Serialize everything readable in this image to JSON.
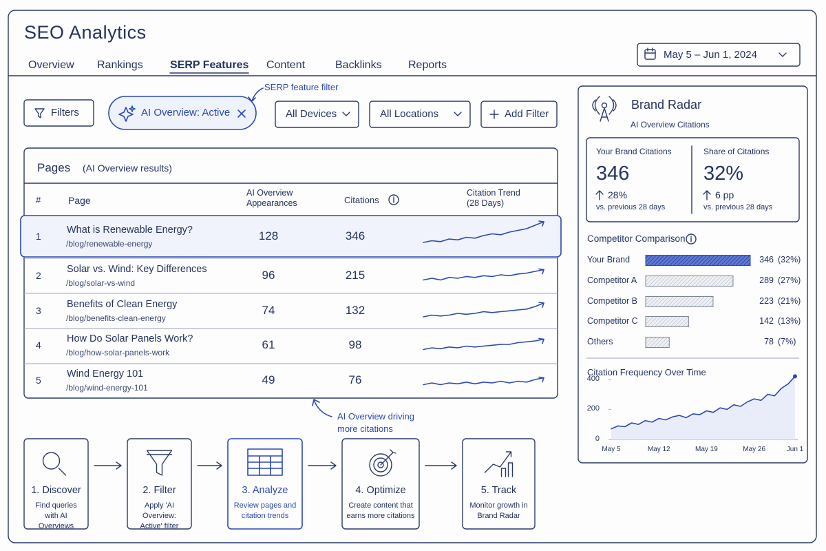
{
  "header": {
    "title": "SEO Analytics",
    "tabs": [
      "Overview",
      "Rankings",
      "SERP Features",
      "Content",
      "Backlinks",
      "Reports"
    ],
    "active_tab": 2,
    "date_range": "May 5 – Jun 1, 2024"
  },
  "filters": {
    "filters_button": "Filters",
    "active_filter": "AI Overview: Active",
    "annotation": "SERP feature filter",
    "dropdowns": [
      "All Devices",
      "All Locations"
    ],
    "add_filter": "Add Filter"
  },
  "pages_table": {
    "title": "Pages",
    "subtitle": "(AI Overview results)",
    "columns": [
      "#",
      "Page",
      "AI Overview Appearances",
      "Citations",
      "Citation Trend (28 Days)"
    ],
    "highlighted_row": 0,
    "rows": [
      {
        "rank": "1",
        "title": "What is Renewable Energy?",
        "url": "/blog/renewable-energy",
        "appearances": "128",
        "citations": "346",
        "trend": [
          2,
          3,
          2.5,
          4,
          3.5,
          5,
          4.5,
          6,
          7,
          6.5,
          8,
          9,
          10,
          12,
          14
        ]
      },
      {
        "rank": "2",
        "title": "Solar vs. Wind: Key Differences",
        "url": "/blog/solar-vs-wind",
        "appearances": "96",
        "citations": "215",
        "trend": [
          3,
          4,
          3,
          4.5,
          4,
          5,
          4.5,
          5.5,
          5,
          6,
          5.5,
          6.5,
          7,
          8,
          9
        ]
      },
      {
        "rank": "3",
        "title": "Benefits of Clean Energy",
        "url": "/blog/benefits-clean-energy",
        "appearances": "74",
        "citations": "132",
        "trend": [
          2,
          3,
          2.5,
          3,
          4,
          3.5,
          4,
          5,
          4.5,
          5,
          5.5,
          6,
          6.5,
          8,
          10
        ]
      },
      {
        "rank": "4",
        "title": "How Do Solar Panels Work?",
        "url": "/blog/how-solar-panels-work",
        "appearances": "61",
        "citations": "98",
        "trend": [
          3,
          4,
          3.5,
          4.5,
          4,
          5,
          4.5,
          5,
          5.5,
          6,
          6,
          7,
          7.5,
          8,
          9
        ]
      },
      {
        "rank": "5",
        "title": "Wind Energy 101",
        "url": "/blog/wind-energy-101",
        "appearances": "49",
        "citations": "76",
        "trend": [
          3,
          4,
          3,
          4,
          3.5,
          4.5,
          3.5,
          4.5,
          4,
          5,
          4,
          5,
          4.5,
          6,
          7
        ]
      }
    ],
    "annotation": "AI Overview driving more citations"
  },
  "brand_radar": {
    "title": "Brand Radar",
    "subtitle": "AI Overview Citations",
    "kpis": [
      {
        "label": "Your Brand Citations",
        "value": "346",
        "change": "28%",
        "note": "vs. previous 28 days"
      },
      {
        "label": "Share of Citations",
        "value": "32%",
        "change": "6 pp",
        "note": "vs. previous 28 days"
      }
    ],
    "competitor_chart": {
      "type": "bar",
      "title": "Competitor Comparison",
      "categories": [
        "Your Brand",
        "Competitor A",
        "Competitor B",
        "Competitor C",
        "Others"
      ],
      "values": [
        346,
        289,
        223,
        142,
        78
      ],
      "shares": [
        32,
        27,
        21,
        13,
        7
      ],
      "share_labels": [
        "(32%)",
        "(27%)",
        "(21%)",
        "(13%)",
        "(7%)"
      ]
    },
    "frequency_chart": {
      "type": "line",
      "title": "Citation Frequency Over Time",
      "categories": [
        "May 5",
        null,
        null,
        null,
        null,
        null,
        null,
        "May 12",
        null,
        null,
        null,
        null,
        null,
        null,
        "May 19",
        null,
        null,
        null,
        null,
        null,
        null,
        "May 26",
        null,
        null,
        null,
        null,
        null,
        "Jun 1"
      ],
      "values": [
        70,
        90,
        85,
        110,
        100,
        125,
        115,
        140,
        130,
        150,
        160,
        145,
        170,
        165,
        190,
        180,
        210,
        200,
        230,
        220,
        250,
        270,
        260,
        300,
        290,
        340,
        370,
        420
      ],
      "ylim": [
        0,
        440
      ],
      "yticks": [
        0,
        200,
        400
      ]
    }
  },
  "workflow": {
    "active_step": 2,
    "steps": [
      {
        "title": "1. Discover",
        "text": "Find queries with AI Overviews"
      },
      {
        "title": "2. Filter",
        "text": "Apply 'AI Overview: Active' filter"
      },
      {
        "title": "3. Analyze",
        "text": "Review pages and citation trends"
      },
      {
        "title": "4. Optimize",
        "text": "Create content that earns more citations"
      },
      {
        "title": "5. Track",
        "text": "Monitor growth in Brand Radar"
      }
    ]
  }
}
